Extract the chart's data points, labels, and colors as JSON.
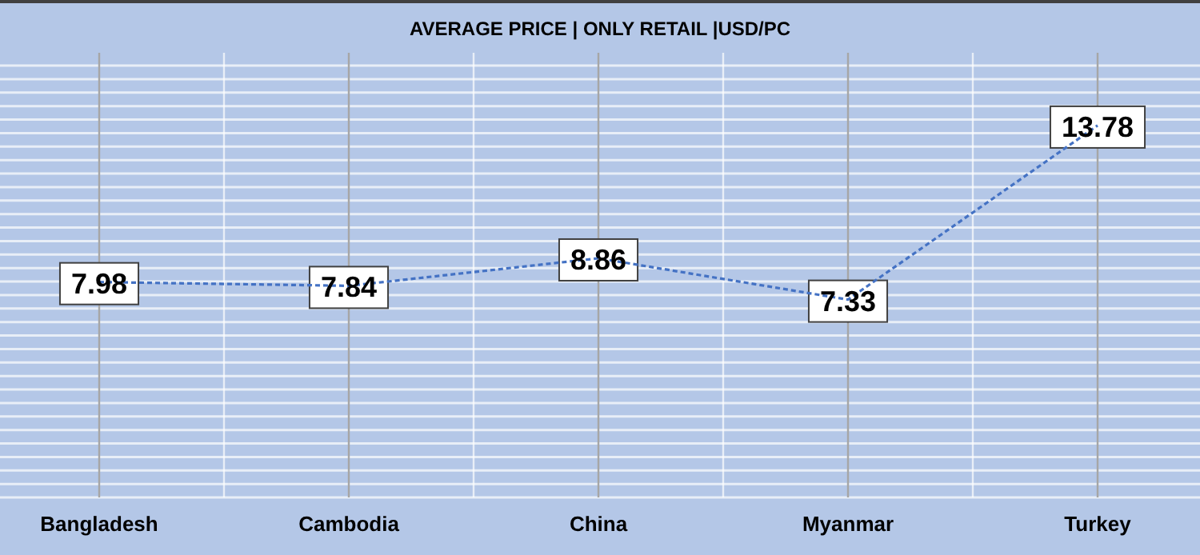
{
  "chart_data": {
    "type": "line",
    "title": "AVERAGE PRICE | ONLY RETAIL |USD/PC",
    "categories": [
      "Bangladesh",
      "Cambodia",
      "China",
      "Myanmar",
      "Turkey"
    ],
    "series": [
      {
        "color": "#4472c4",
        "values": [
          7.98,
          7.84,
          8.86,
          7.33,
          13.78
        ]
      }
    ],
    "data_labels": true,
    "line_style": "dashed",
    "grid": true,
    "tick_labels": "x",
    "ylim": [
      0,
      16
    ],
    "yticks": [
      {
        "value": 0,
        "label": null
      },
      {
        "value": 0.5,
        "label": null
      },
      {
        "value": 1,
        "label": null
      },
      {
        "value": 1.5,
        "label": null
      },
      {
        "value": 2,
        "label": null
      },
      {
        "value": 2.5,
        "label": null
      },
      {
        "value": 3,
        "label": null
      },
      {
        "value": 3.5,
        "label": null
      },
      {
        "value": 4,
        "label": null
      },
      {
        "value": 4.5,
        "label": null
      },
      {
        "value": 5,
        "label": null
      },
      {
        "value": 5.5,
        "label": null
      },
      {
        "value": 6,
        "label": null
      },
      {
        "value": 6.5,
        "label": null
      },
      {
        "value": 7,
        "label": null
      },
      {
        "value": 7.5,
        "label": null
      },
      {
        "value": 8,
        "label": null
      },
      {
        "value": 8.5,
        "label": null
      },
      {
        "value": 9,
        "label": null
      },
      {
        "value": 9.5,
        "label": null
      },
      {
        "value": 10,
        "label": null
      },
      {
        "value": 10.5,
        "label": null
      },
      {
        "value": 11,
        "label": null
      },
      {
        "value": 11.5,
        "label": null
      },
      {
        "value": 12,
        "label": null
      },
      {
        "value": 12.5,
        "label": null
      },
      {
        "value": 13,
        "label": null
      },
      {
        "value": 13.5,
        "label": null
      },
      {
        "value": 14,
        "label": null
      },
      {
        "value": 14.5,
        "label": null
      },
      {
        "value": 15,
        "label": null
      },
      {
        "value": 15.5,
        "label": null
      },
      {
        "value": 16,
        "label": null
      }
    ]
  }
}
